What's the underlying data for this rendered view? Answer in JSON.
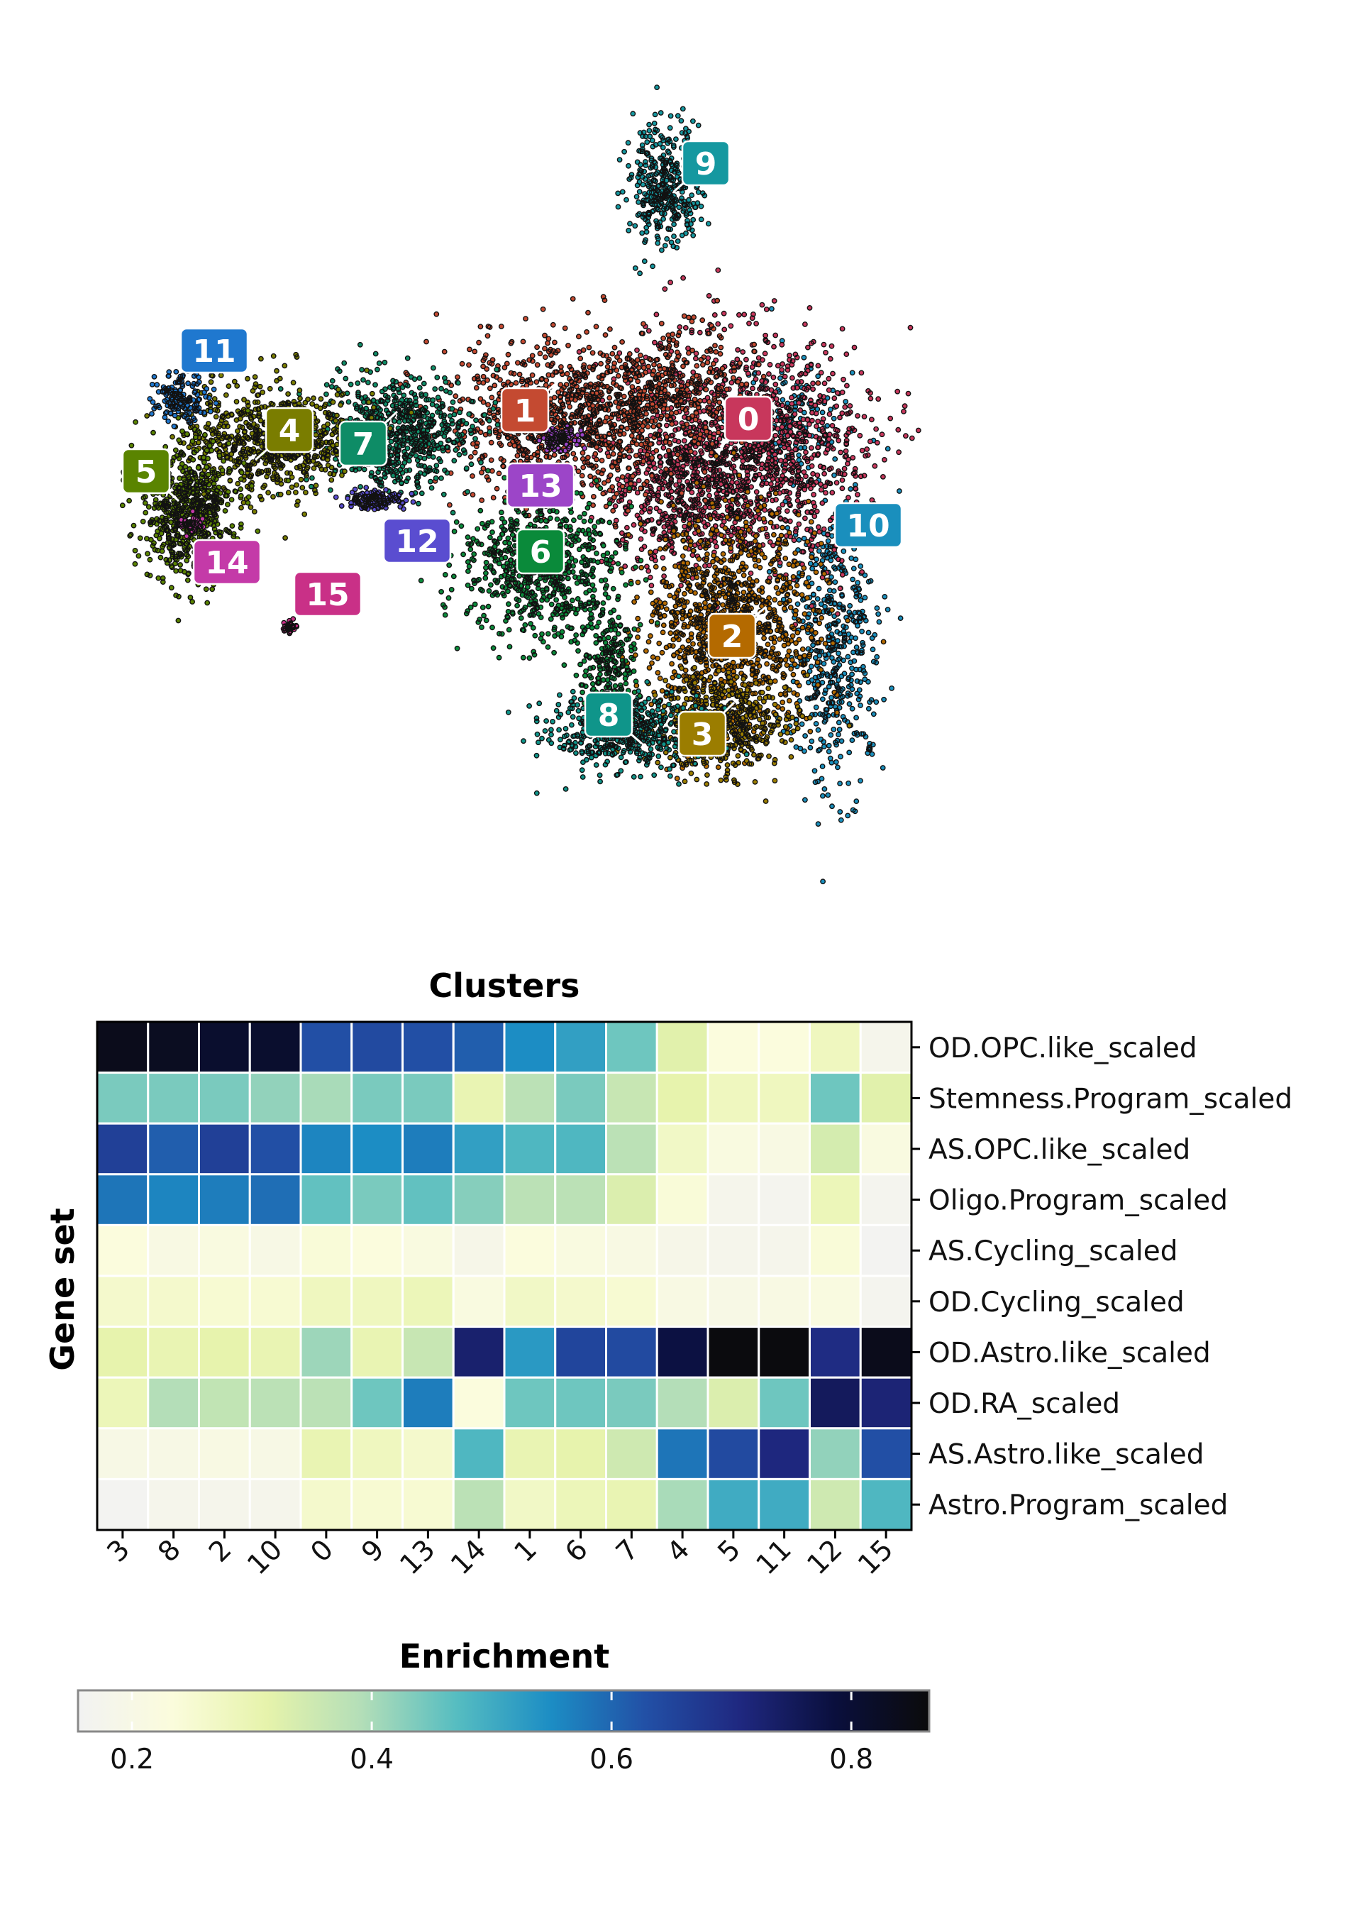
{
  "colors": {
    "scale": [
      "#f2f2f2",
      "#fbfcdc",
      "#e6f3ab",
      "#b3deb8",
      "#56bdc1",
      "#1c8dc4",
      "#2250a6",
      "#1f2880",
      "#0a0f3d",
      "#0b0b0b"
    ],
    "cluster": {
      "0": "#c8375c",
      "1": "#c44a31",
      "2": "#b46a00",
      "3": "#9b7d00",
      "4": "#7a7d00",
      "5": "#5a8400",
      "6": "#0a8a3a",
      "7": "#0e8c66",
      "8": "#0f958a",
      "9": "#1598a0",
      "10": "#1a8fbd",
      "11": "#1f78cf",
      "12": "#5a4dd0",
      "13": "#9c45c8",
      "14": "#c43aa8",
      "15": "#c93087"
    }
  },
  "umap": {
    "clusters": [
      {
        "id": "0",
        "label": "0"
      },
      {
        "id": "1",
        "label": "1"
      },
      {
        "id": "2",
        "label": "2"
      },
      {
        "id": "3",
        "label": "3"
      },
      {
        "id": "4",
        "label": "4"
      },
      {
        "id": "5",
        "label": "5"
      },
      {
        "id": "6",
        "label": "6"
      },
      {
        "id": "7",
        "label": "7"
      },
      {
        "id": "8",
        "label": "8"
      },
      {
        "id": "9",
        "label": "9"
      },
      {
        "id": "10",
        "label": "10"
      },
      {
        "id": "11",
        "label": "11"
      },
      {
        "id": "12",
        "label": "12"
      },
      {
        "id": "13",
        "label": "13"
      },
      {
        "id": "14",
        "label": "14"
      },
      {
        "id": "15",
        "label": "15"
      }
    ]
  },
  "chart_data": {
    "type": "heatmap",
    "title": "Clusters",
    "ylabel": "Gene set",
    "x": [
      "3",
      "8",
      "2",
      "10",
      "0",
      "9",
      "13",
      "14",
      "1",
      "6",
      "7",
      "4",
      "5",
      "11",
      "12",
      "15"
    ],
    "y": [
      "OD.OPC.like_scaled",
      "Stemness.Program_scaled",
      "AS.OPC.like_scaled",
      "Oligo.Program_scaled",
      "AS.Cycling_scaled",
      "OD.Cycling_scaled",
      "OD.Astro.like_scaled",
      "OD.RA_scaled",
      "AS.Astro.like_scaled",
      "Astro.Program_scaled"
    ],
    "values": [
      [
        0.84,
        0.83,
        0.81,
        0.81,
        0.63,
        0.64,
        0.63,
        0.61,
        0.55,
        0.52,
        0.45,
        0.32,
        0.23,
        0.23,
        0.28,
        0.18
      ],
      [
        0.44,
        0.44,
        0.44,
        0.42,
        0.4,
        0.44,
        0.44,
        0.3,
        0.38,
        0.44,
        0.36,
        0.31,
        0.28,
        0.28,
        0.45,
        0.32
      ],
      [
        0.66,
        0.61,
        0.66,
        0.63,
        0.56,
        0.55,
        0.57,
        0.52,
        0.48,
        0.48,
        0.38,
        0.27,
        0.22,
        0.21,
        0.34,
        0.22
      ],
      [
        0.58,
        0.56,
        0.57,
        0.59,
        0.46,
        0.44,
        0.46,
        0.43,
        0.38,
        0.38,
        0.33,
        0.24,
        0.18,
        0.17,
        0.29,
        0.17
      ],
      [
        0.23,
        0.21,
        0.22,
        0.2,
        0.24,
        0.23,
        0.22,
        0.19,
        0.23,
        0.22,
        0.21,
        0.19,
        0.18,
        0.18,
        0.24,
        0.16
      ],
      [
        0.26,
        0.26,
        0.25,
        0.25,
        0.28,
        0.28,
        0.29,
        0.22,
        0.27,
        0.26,
        0.25,
        0.21,
        0.2,
        0.21,
        0.22,
        0.17
      ],
      [
        0.31,
        0.3,
        0.31,
        0.3,
        0.41,
        0.3,
        0.36,
        0.73,
        0.53,
        0.65,
        0.64,
        0.78,
        0.86,
        0.86,
        0.7,
        0.84
      ],
      [
        0.29,
        0.39,
        0.37,
        0.38,
        0.38,
        0.45,
        0.57,
        0.23,
        0.45,
        0.45,
        0.44,
        0.39,
        0.33,
        0.45,
        0.75,
        0.72
      ],
      [
        0.2,
        0.2,
        0.21,
        0.2,
        0.3,
        0.28,
        0.26,
        0.48,
        0.3,
        0.31,
        0.35,
        0.58,
        0.64,
        0.71,
        0.42,
        0.63
      ],
      [
        0.16,
        0.18,
        0.18,
        0.18,
        0.26,
        0.25,
        0.25,
        0.38,
        0.27,
        0.29,
        0.3,
        0.4,
        0.5,
        0.5,
        0.35,
        0.48
      ]
    ],
    "legend": {
      "title": "Enrichment",
      "min": 0.155,
      "max": 0.865,
      "ticks": [
        0.2,
        0.4,
        0.6,
        0.8
      ],
      "tick_labels": [
        "0.2",
        "0.4",
        "0.6",
        "0.8"
      ]
    }
  }
}
